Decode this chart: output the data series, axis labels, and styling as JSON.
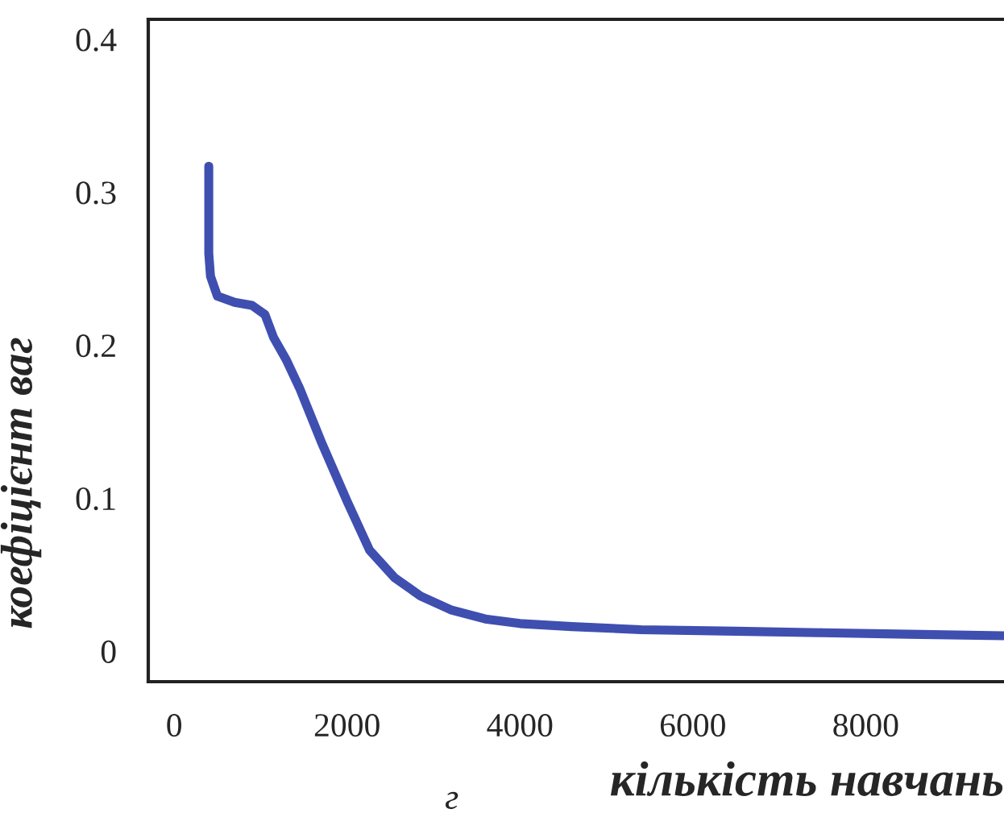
{
  "chart_data": {
    "type": "line",
    "xlabel": "кількість навчань",
    "ylabel": "коефіцієнт ваг",
    "annotations": [
      "г"
    ],
    "x": [
      400,
      400,
      420,
      500,
      700,
      900,
      1050,
      1150,
      1300,
      1450,
      1700,
      2000,
      2260,
      2550,
      2850,
      3200,
      3600,
      4000,
      4600,
      5400,
      6500,
      7500,
      8500,
      9600
    ],
    "series": [
      {
        "color": "#3f4fb0",
        "values": [
          0.317,
          0.26,
          0.245,
          0.232,
          0.228,
          0.226,
          0.22,
          0.205,
          0.19,
          0.172,
          0.137,
          0.098,
          0.066,
          0.048,
          0.036,
          0.027,
          0.021,
          0.018,
          0.016,
          0.014,
          0.013,
          0.012,
          0.011,
          0.01
        ]
      }
    ],
    "xlim": [
      -300,
      9600
    ],
    "ylim": [
      -0.02,
      0.413
    ],
    "xticks": [
      0,
      2000,
      4000,
      6000,
      8000
    ],
    "yticks": [
      0,
      0.1,
      0.2,
      0.3,
      0.4
    ],
    "grid": false,
    "legend": false,
    "marker": "none",
    "line_style": "solid"
  }
}
